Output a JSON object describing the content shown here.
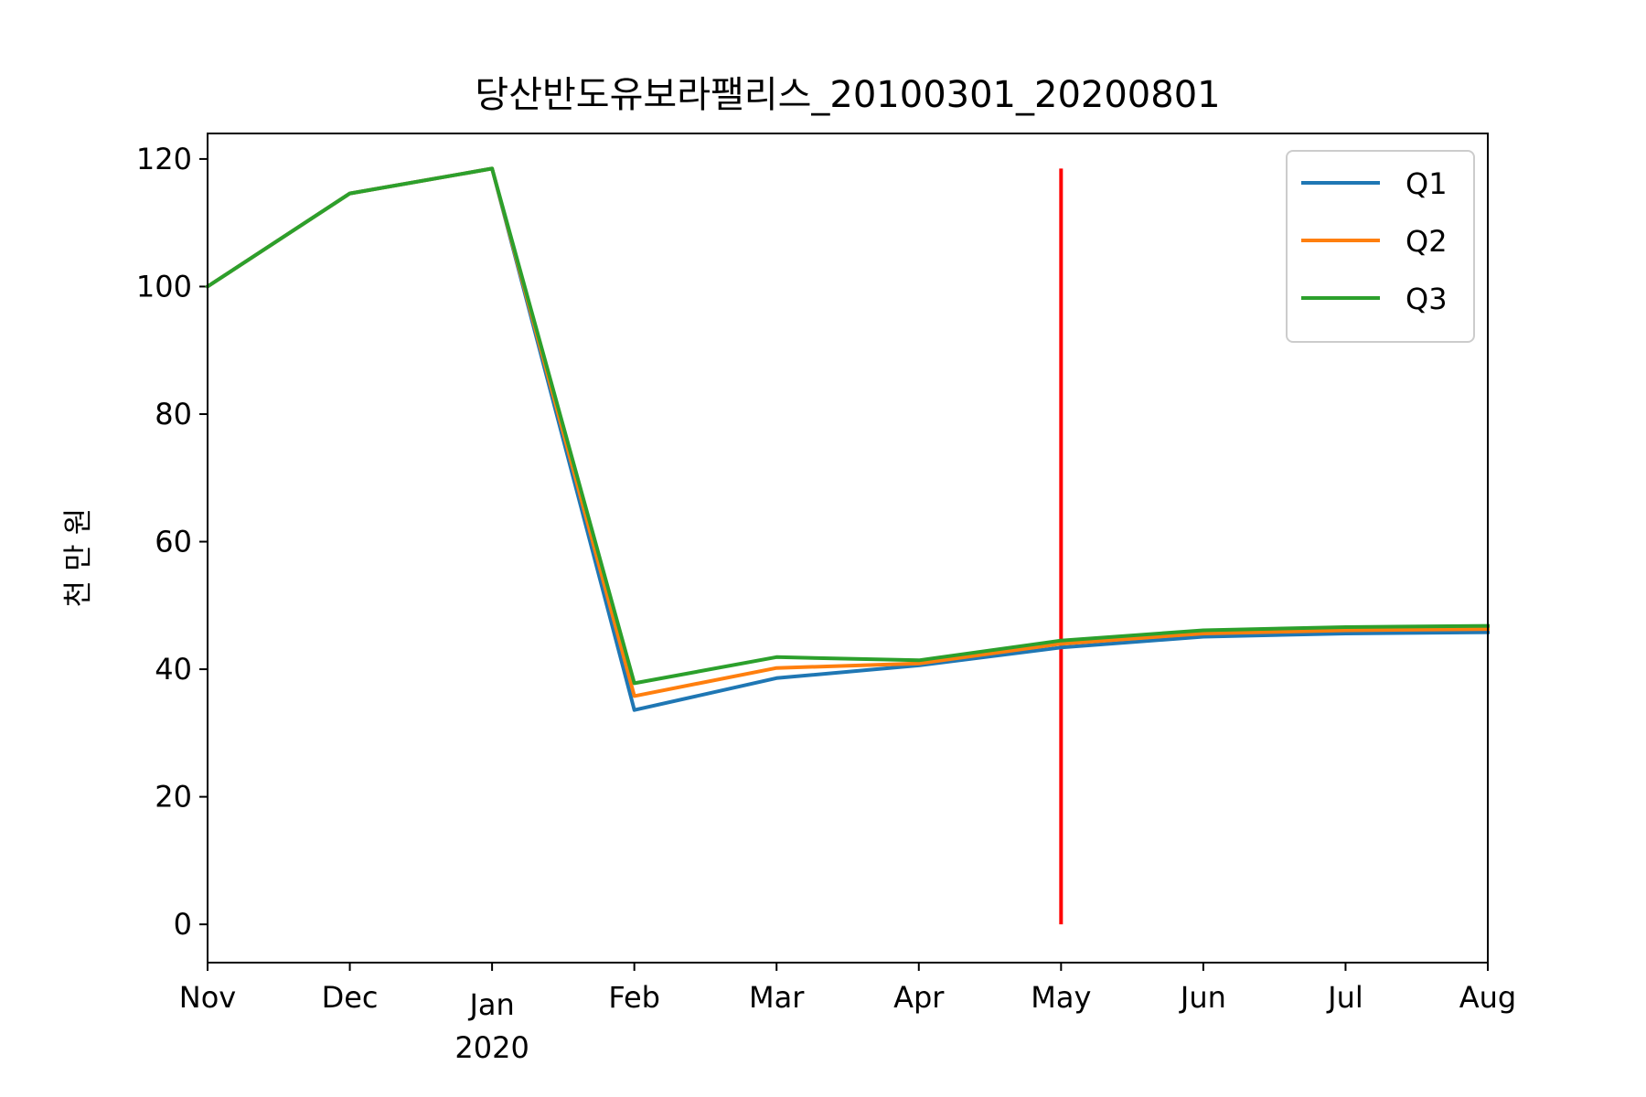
{
  "chart_data": {
    "type": "line",
    "title": "당산반도유보라팰리스_20100301_20200801",
    "xlabel": "",
    "ylabel": "천 만 원",
    "categories": [
      "Nov",
      "Dec",
      "Jan",
      "Feb",
      "Mar",
      "Apr",
      "May",
      "Jun",
      "Jul",
      "Aug"
    ],
    "year_label": "2020",
    "year_label_under": "Jan",
    "ylim": [
      -6,
      124
    ],
    "yticks": [
      0,
      20,
      40,
      60,
      80,
      100,
      120
    ],
    "grid": false,
    "legend_position": "top-right",
    "series": [
      {
        "name": "Q1",
        "color": "#1f77b4",
        "values": [
          100.0,
          114.6,
          118.5,
          33.6,
          38.6,
          40.6,
          43.4,
          45.1,
          45.6,
          45.8
        ]
      },
      {
        "name": "Q2",
        "color": "#ff7f0e",
        "values": [
          100.0,
          114.6,
          118.5,
          35.8,
          40.2,
          40.9,
          44.0,
          45.6,
          46.1,
          46.3
        ]
      },
      {
        "name": "Q3",
        "color": "#2ca02c",
        "values": [
          100.0,
          114.6,
          118.5,
          37.8,
          41.9,
          41.4,
          44.5,
          46.1,
          46.6,
          46.8
        ]
      }
    ],
    "vline": {
      "x": "May",
      "ymin": 0,
      "ymax": 118.5,
      "color": "#ff0000"
    }
  }
}
